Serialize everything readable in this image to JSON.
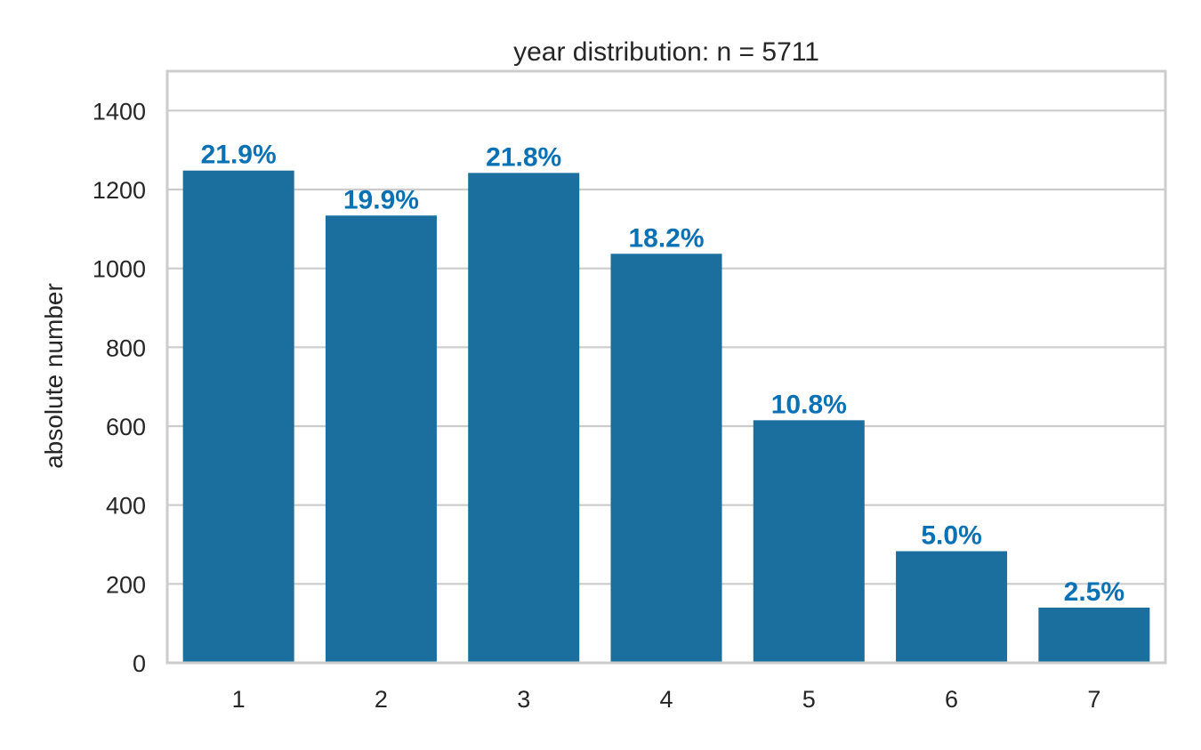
{
  "chart_data": {
    "type": "bar",
    "title": "year distribution: n = 5711",
    "xlabel": "",
    "ylabel": "absolute number",
    "categories": [
      "1",
      "2",
      "3",
      "4",
      "5",
      "6",
      "7"
    ],
    "values": [
      1248,
      1134,
      1242,
      1037,
      615,
      283,
      140
    ],
    "data_labels": [
      "21.9%",
      "19.9%",
      "21.8%",
      "18.2%",
      "10.8%",
      "5.0%",
      "2.5%"
    ],
    "ylim": [
      0,
      1500
    ],
    "yticks": [
      "0",
      "200",
      "400",
      "600",
      "800",
      "1000",
      "1200",
      "1400"
    ],
    "grid": "y",
    "legend": "none",
    "colors": {
      "bar": "#1a6f9f",
      "label": "#0a72b4",
      "grid": "#cccccc",
      "frame": "#cccccc",
      "text": "#262626"
    }
  }
}
